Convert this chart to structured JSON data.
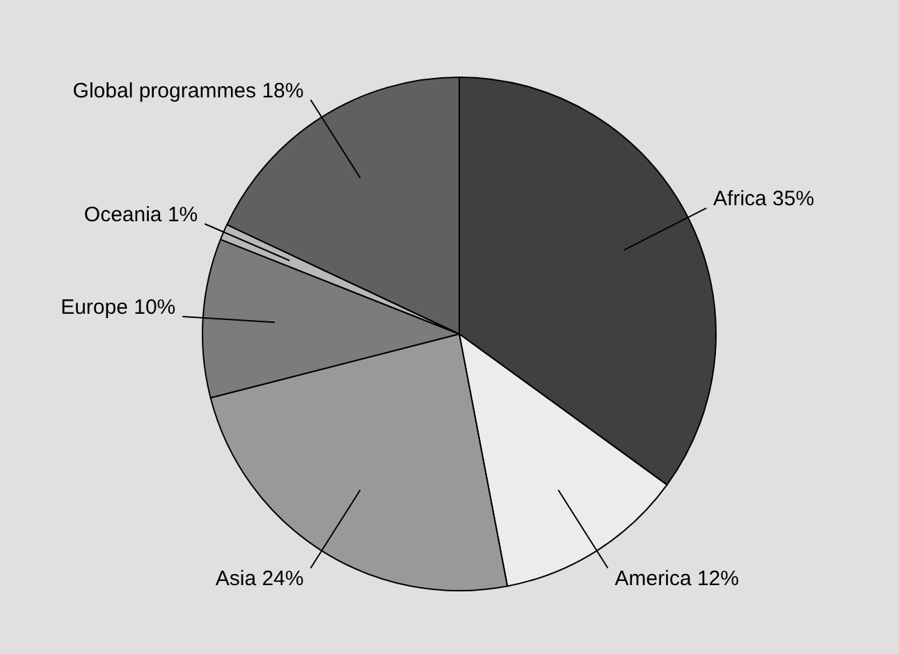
{
  "chart_data": {
    "type": "pie",
    "categories": [
      "Africa",
      "America",
      "Asia",
      "Europe",
      "Oceania",
      "Global programmes"
    ],
    "values": [
      35,
      12,
      24,
      10,
      1,
      18
    ],
    "value_labels": [
      "35%",
      "12%",
      "24%",
      "10%",
      "1%",
      "18%"
    ],
    "colors": [
      "#404040",
      "#ececec",
      "#98999b",
      "#7b7c7e",
      "#b8b8b8",
      "#606062"
    ],
    "legend": false
  }
}
